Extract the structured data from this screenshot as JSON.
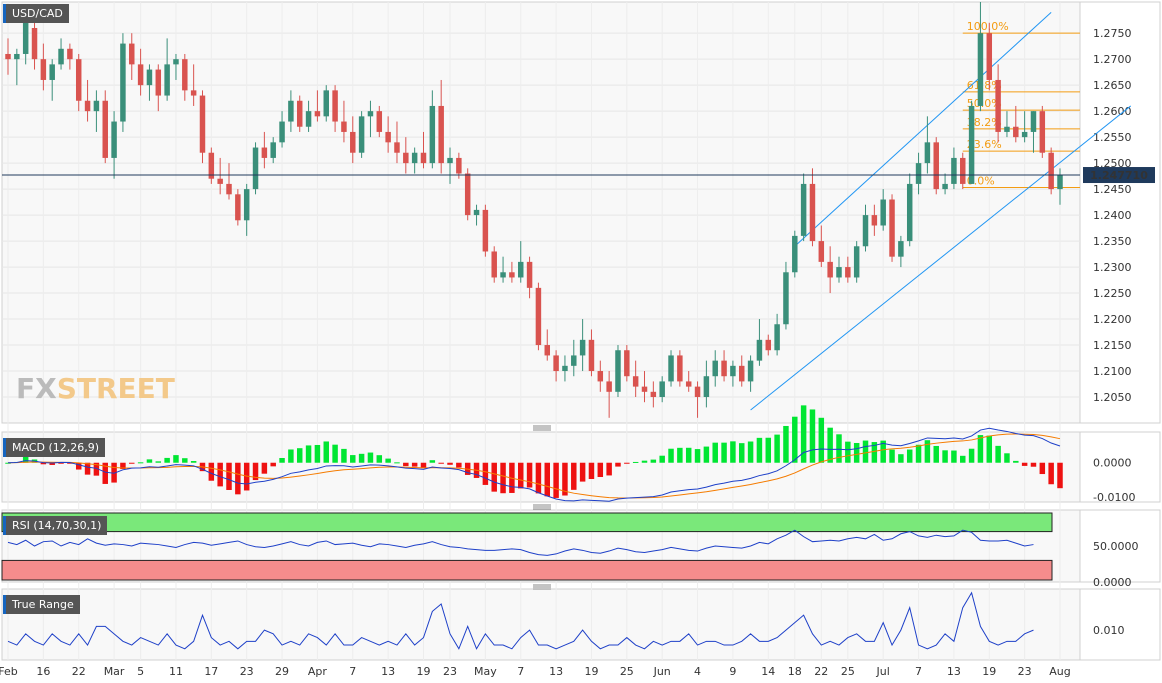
{
  "title": "USD/CAD",
  "last_price": "1.247710",
  "watermark": {
    "fx": "FX",
    "street": "STREET"
  },
  "colors": {
    "up": "#3a8f7a",
    "down": "#d9534f",
    "channel": "#2196f3",
    "fib": "#f39c12",
    "macd": "#1e40c8",
    "signal": "#f57c00",
    "hist_pos": "#00e632",
    "hist_neg": "#ee1111",
    "rsi": "#1e40c8",
    "rsi_over": "#7ae87a",
    "rsi_under": "#f58c8c",
    "tr": "#1e40c8"
  },
  "chart_data": {
    "type": "candlestick",
    "title": "USD/CAD",
    "price_axis": {
      "ylim": [
        1.2,
        1.281
      ],
      "ticks": [
        "1.2750",
        "1.2700",
        "1.2650",
        "1.2600",
        "1.2550",
        "1.2500",
        "1.2450",
        "1.2400",
        "1.2350",
        "1.2300",
        "1.2250",
        "1.2200",
        "1.2150",
        "1.2100",
        "1.2050"
      ]
    },
    "date_labels": [
      "Feb",
      "16",
      "22",
      "Mar",
      "5",
      "11",
      "17",
      "23",
      "29",
      "Apr",
      "7",
      "13",
      "19",
      "23",
      "May",
      "7",
      "13",
      "19",
      "25",
      "Jun",
      "4",
      "9",
      "14",
      "18",
      "22",
      "25",
      "Jul",
      "7",
      "13",
      "19",
      "23",
      "Aug"
    ],
    "ohlc": [
      [
        1.271,
        1.274,
        1.267,
        1.27
      ],
      [
        1.27,
        1.272,
        1.265,
        1.271
      ],
      [
        1.271,
        1.279,
        1.269,
        1.277
      ],
      [
        1.276,
        1.278,
        1.268,
        1.27
      ],
      [
        1.27,
        1.273,
        1.264,
        1.266
      ],
      [
        1.266,
        1.27,
        1.262,
        1.269
      ],
      [
        1.269,
        1.274,
        1.268,
        1.272
      ],
      [
        1.272,
        1.273,
        1.268,
        1.27
      ],
      [
        1.27,
        1.271,
        1.26,
        1.262
      ],
      [
        1.262,
        1.266,
        1.258,
        1.26
      ],
      [
        1.26,
        1.264,
        1.256,
        1.262
      ],
      [
        1.262,
        1.264,
        1.25,
        1.251
      ],
      [
        1.251,
        1.26,
        1.247,
        1.258
      ],
      [
        1.258,
        1.275,
        1.256,
        1.273
      ],
      [
        1.273,
        1.275,
        1.266,
        1.269
      ],
      [
        1.269,
        1.272,
        1.263,
        1.265
      ],
      [
        1.265,
        1.269,
        1.262,
        1.268
      ],
      [
        1.268,
        1.269,
        1.26,
        1.263
      ],
      [
        1.263,
        1.274,
        1.262,
        1.269
      ],
      [
        1.269,
        1.271,
        1.266,
        1.27
      ],
      [
        1.27,
        1.271,
        1.262,
        1.264
      ],
      [
        1.264,
        1.269,
        1.261,
        1.263
      ],
      [
        1.263,
        1.264,
        1.25,
        1.252
      ],
      [
        1.252,
        1.253,
        1.246,
        1.247
      ],
      [
        1.247,
        1.251,
        1.244,
        1.246
      ],
      [
        1.246,
        1.25,
        1.243,
        1.244
      ],
      [
        1.244,
        1.245,
        1.238,
        1.239
      ],
      [
        1.239,
        1.246,
        1.236,
        1.245
      ],
      [
        1.245,
        1.254,
        1.244,
        1.253
      ],
      [
        1.253,
        1.256,
        1.249,
        1.251
      ],
      [
        1.251,
        1.255,
        1.25,
        1.254
      ],
      [
        1.254,
        1.26,
        1.253,
        1.258
      ],
      [
        1.258,
        1.264,
        1.256,
        1.262
      ],
      [
        1.262,
        1.263,
        1.256,
        1.257
      ],
      [
        1.257,
        1.262,
        1.256,
        1.26
      ],
      [
        1.26,
        1.264,
        1.258,
        1.259
      ],
      [
        1.259,
        1.265,
        1.258,
        1.264
      ],
      [
        1.264,
        1.265,
        1.256,
        1.258
      ],
      [
        1.258,
        1.262,
        1.254,
        1.256
      ],
      [
        1.256,
        1.259,
        1.25,
        1.252
      ],
      [
        1.252,
        1.26,
        1.251,
        1.259
      ],
      [
        1.259,
        1.262,
        1.255,
        1.26
      ],
      [
        1.26,
        1.261,
        1.255,
        1.256
      ],
      [
        1.256,
        1.259,
        1.252,
        1.254
      ],
      [
        1.254,
        1.258,
        1.25,
        1.252
      ],
      [
        1.252,
        1.255,
        1.248,
        1.25
      ],
      [
        1.25,
        1.253,
        1.248,
        1.252
      ],
      [
        1.252,
        1.256,
        1.249,
        1.25
      ],
      [
        1.25,
        1.264,
        1.249,
        1.261
      ],
      [
        1.261,
        1.266,
        1.248,
        1.25
      ],
      [
        1.25,
        1.253,
        1.246,
        1.251
      ],
      [
        1.251,
        1.252,
        1.247,
        1.248
      ],
      [
        1.248,
        1.249,
        1.239,
        1.24
      ],
      [
        1.24,
        1.242,
        1.238,
        1.241
      ],
      [
        1.241,
        1.242,
        1.232,
        1.233
      ],
      [
        1.233,
        1.234,
        1.227,
        1.228
      ],
      [
        1.228,
        1.232,
        1.227,
        1.229
      ],
      [
        1.229,
        1.231,
        1.227,
        1.228
      ],
      [
        1.228,
        1.235,
        1.227,
        1.231
      ],
      [
        1.231,
        1.232,
        1.224,
        1.226
      ],
      [
        1.226,
        1.227,
        1.214,
        1.215
      ],
      [
        1.215,
        1.218,
        1.212,
        1.213
      ],
      [
        1.213,
        1.214,
        1.208,
        1.21
      ],
      [
        1.21,
        1.213,
        1.208,
        1.211
      ],
      [
        1.211,
        1.216,
        1.209,
        1.213
      ],
      [
        1.213,
        1.22,
        1.21,
        1.216
      ],
      [
        1.216,
        1.218,
        1.209,
        1.21
      ],
      [
        1.21,
        1.212,
        1.206,
        1.208
      ],
      [
        1.208,
        1.21,
        1.201,
        1.206
      ],
      [
        1.206,
        1.215,
        1.205,
        1.214
      ],
      [
        1.214,
        1.215,
        1.208,
        1.209
      ],
      [
        1.209,
        1.212,
        1.205,
        1.207
      ],
      [
        1.207,
        1.21,
        1.204,
        1.206
      ],
      [
        1.206,
        1.208,
        1.203,
        1.205
      ],
      [
        1.205,
        1.209,
        1.204,
        1.208
      ],
      [
        1.208,
        1.214,
        1.207,
        1.213
      ],
      [
        1.213,
        1.214,
        1.207,
        1.208
      ],
      [
        1.208,
        1.21,
        1.206,
        1.207
      ],
      [
        1.207,
        1.208,
        1.201,
        1.205
      ],
      [
        1.205,
        1.212,
        1.203,
        1.209
      ],
      [
        1.209,
        1.214,
        1.207,
        1.212
      ],
      [
        1.212,
        1.214,
        1.208,
        1.209
      ],
      [
        1.209,
        1.212,
        1.207,
        1.211
      ],
      [
        1.211,
        1.213,
        1.207,
        1.208
      ],
      [
        1.208,
        1.213,
        1.206,
        1.212
      ],
      [
        1.212,
        1.22,
        1.211,
        1.216
      ],
      [
        1.216,
        1.217,
        1.213,
        1.214
      ],
      [
        1.214,
        1.221,
        1.213,
        1.219
      ],
      [
        1.219,
        1.231,
        1.218,
        1.229
      ],
      [
        1.229,
        1.237,
        1.228,
        1.236
      ],
      [
        1.236,
        1.248,
        1.235,
        1.246
      ],
      [
        1.246,
        1.249,
        1.234,
        1.235
      ],
      [
        1.235,
        1.238,
        1.23,
        1.231
      ],
      [
        1.231,
        1.234,
        1.225,
        1.228
      ],
      [
        1.228,
        1.232,
        1.227,
        1.23
      ],
      [
        1.23,
        1.232,
        1.227,
        1.228
      ],
      [
        1.228,
        1.235,
        1.227,
        1.234
      ],
      [
        1.234,
        1.242,
        1.233,
        1.24
      ],
      [
        1.24,
        1.242,
        1.236,
        1.238
      ],
      [
        1.238,
        1.245,
        1.237,
        1.243
      ],
      [
        1.243,
        1.244,
        1.231,
        1.232
      ],
      [
        1.232,
        1.236,
        1.23,
        1.235
      ],
      [
        1.235,
        1.248,
        1.234,
        1.246
      ],
      [
        1.246,
        1.252,
        1.244,
        1.25
      ],
      [
        1.25,
        1.259,
        1.248,
        1.254
      ],
      [
        1.254,
        1.255,
        1.244,
        1.245
      ],
      [
        1.245,
        1.248,
        1.244,
        1.246
      ],
      [
        1.246,
        1.253,
        1.245,
        1.251
      ],
      [
        1.251,
        1.252,
        1.245,
        1.246
      ],
      [
        1.246,
        1.262,
        1.246,
        1.261
      ],
      [
        1.261,
        1.281,
        1.26,
        1.275
      ],
      [
        1.275,
        1.277,
        1.264,
        1.266
      ],
      [
        1.266,
        1.269,
        1.254,
        1.256
      ],
      [
        1.256,
        1.26,
        1.255,
        1.257
      ],
      [
        1.257,
        1.261,
        1.254,
        1.255
      ],
      [
        1.255,
        1.26,
        1.254,
        1.256
      ],
      [
        1.256,
        1.26,
        1.252,
        1.26
      ],
      [
        1.26,
        1.261,
        1.251,
        1.252
      ],
      [
        1.252,
        1.253,
        1.244,
        1.245
      ],
      [
        1.245,
        1.249,
        1.242,
        1.2478
      ]
    ],
    "fibonacci": [
      {
        "label": "100.0%",
        "value": 1.275
      },
      {
        "label": "61.8%",
        "value": 1.2637
      },
      {
        "label": "50.0%",
        "value": 1.2602
      },
      {
        "label": "38.2%",
        "value": 1.2566
      },
      {
        "label": "23.6%",
        "value": 1.2523
      },
      {
        "label": "0.0%",
        "value": 1.2453
      }
    ],
    "channel_upper": [
      [
        89,
        1.234
      ],
      [
        118,
        1.279
      ]
    ],
    "channel_lower": [
      [
        84,
        1.2025
      ],
      [
        127,
        1.261
      ]
    ],
    "macd": {
      "label": "MACD (12,26,9)",
      "ticks": [
        "0.0000",
        "-0.0100"
      ],
      "ylim": [
        -0.0115,
        0.009
      ]
    },
    "rsi": {
      "label": "RSI (14,70,30,1)",
      "ticks": [
        "50.0000",
        "0.0000"
      ],
      "ylim": [
        0,
        100
      ],
      "values": [
        55,
        52,
        58,
        50,
        56,
        57,
        50,
        55,
        52,
        60,
        54,
        51,
        53,
        52,
        50,
        54,
        53,
        52,
        50,
        48,
        52,
        55,
        54,
        51,
        53,
        55,
        57,
        52,
        49,
        48,
        50,
        53,
        56,
        52,
        50,
        55,
        57,
        52,
        53,
        54,
        51,
        49,
        53,
        52,
        50,
        48,
        51,
        53,
        56,
        52,
        49,
        48,
        46,
        45,
        44,
        44,
        45,
        46,
        45,
        41,
        38,
        37,
        39,
        43,
        46,
        44,
        41,
        40,
        43,
        47,
        45,
        42,
        41,
        43,
        45,
        48,
        46,
        44,
        43,
        47,
        50,
        49,
        48,
        47,
        50,
        55,
        53,
        60,
        65,
        72,
        63,
        56,
        57,
        58,
        57,
        60,
        62,
        60,
        66,
        58,
        60,
        67,
        70,
        64,
        62,
        65,
        63,
        64,
        72,
        69,
        58,
        57,
        57,
        58,
        54,
        50,
        52
      ]
    },
    "true_range": {
      "label": "True Range",
      "ticks": [
        "0.010"
      ],
      "values": [
        0.007,
        0.006,
        0.009,
        0.007,
        0.006,
        0.009,
        0.007,
        0.006,
        0.009,
        0.006,
        0.011,
        0.011,
        0.009,
        0.007,
        0.006,
        0.008,
        0.007,
        0.006,
        0.009,
        0.006,
        0.005,
        0.007,
        0.014,
        0.008,
        0.006,
        0.007,
        0.005,
        0.007,
        0.007,
        0.01,
        0.009,
        0.006,
        0.007,
        0.006,
        0.009,
        0.008,
        0.006,
        0.009,
        0.006,
        0.006,
        0.008,
        0.007,
        0.006,
        0.007,
        0.006,
        0.009,
        0.006,
        0.008,
        0.015,
        0.017,
        0.009,
        0.005,
        0.011,
        0.005,
        0.009,
        0.006,
        0.006,
        0.005,
        0.008,
        0.01,
        0.006,
        0.006,
        0.005,
        0.006,
        0.007,
        0.01,
        0.007,
        0.005,
        0.006,
        0.006,
        0.008,
        0.006,
        0.005,
        0.007,
        0.006,
        0.007,
        0.007,
        0.009,
        0.006,
        0.007,
        0.007,
        0.006,
        0.006,
        0.007,
        0.009,
        0.007,
        0.007,
        0.008,
        0.01,
        0.012,
        0.014,
        0.009,
        0.006,
        0.007,
        0.006,
        0.008,
        0.009,
        0.007,
        0.007,
        0.012,
        0.006,
        0.01,
        0.016,
        0.006,
        0.005,
        0.006,
        0.009,
        0.007,
        0.016,
        0.02,
        0.011,
        0.007,
        0.006,
        0.007,
        0.007,
        0.009,
        0.01
      ]
    }
  }
}
